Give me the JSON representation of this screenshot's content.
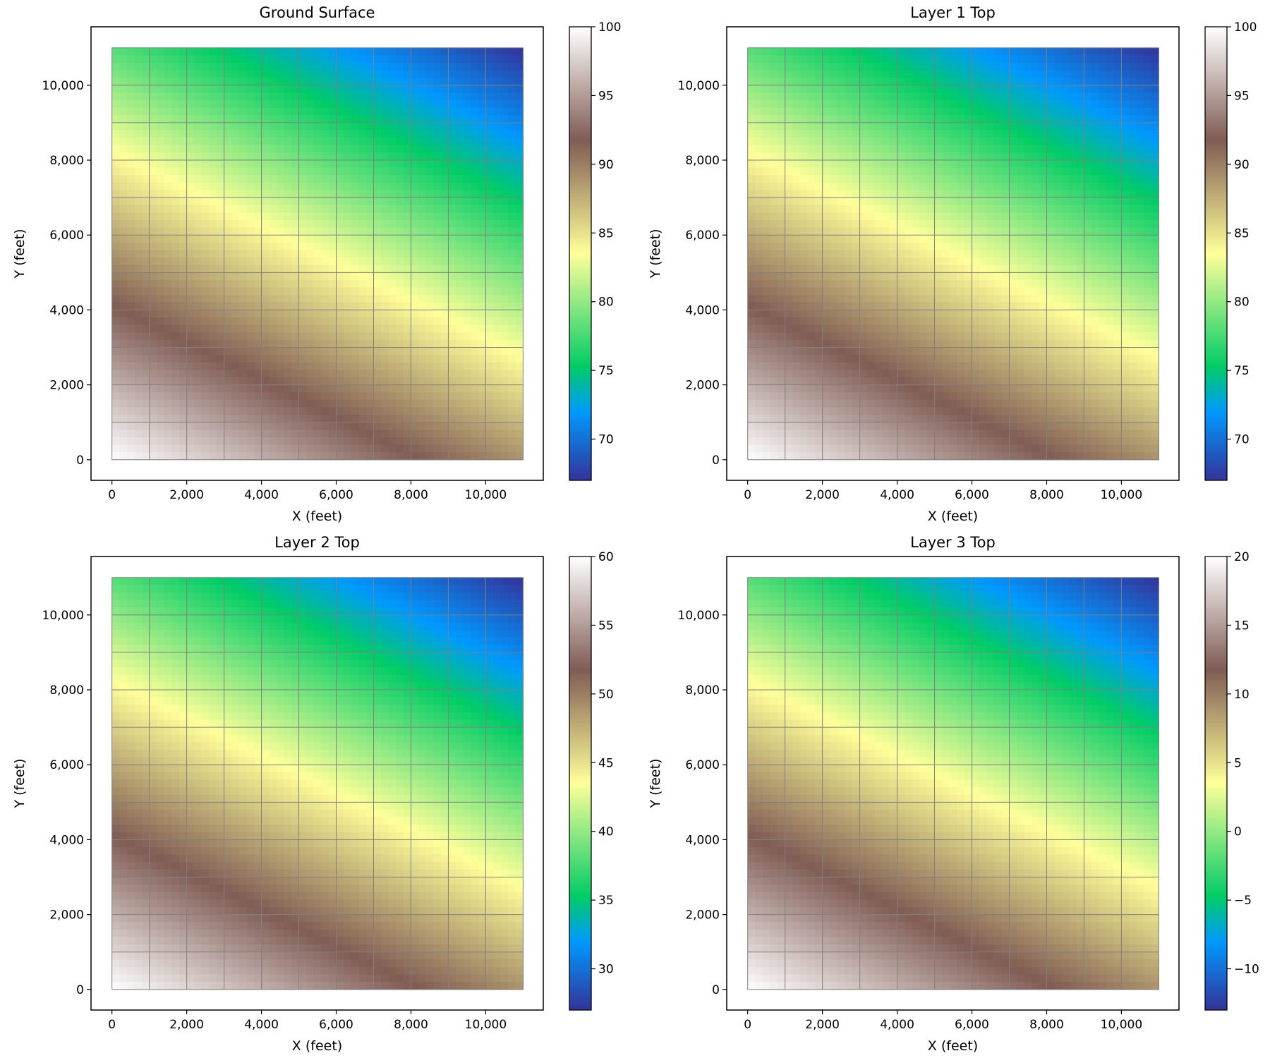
{
  "chart_data": [
    {
      "type": "heatmap",
      "title": "Ground Surface",
      "xlabel": "X (feet)",
      "ylabel": "Y (feet)",
      "colormap": "terrain",
      "x_nodes": [
        0,
        1000,
        2000,
        3000,
        4000,
        5000,
        6000,
        7000,
        8000,
        9000,
        10000,
        11000
      ],
      "y_nodes_top_to_bottom": [
        11000,
        10000,
        9000,
        8000,
        7000,
        6000,
        5000,
        4000,
        3000,
        2000,
        1000,
        0
      ],
      "values": [
        [
          78,
          77,
          76,
          75,
          74,
          73,
          72,
          71,
          70,
          69,
          68,
          67
        ],
        [
          80,
          79,
          78,
          77,
          76,
          75,
          74,
          73,
          72,
          71,
          70,
          69
        ],
        [
          82,
          81,
          80,
          79,
          78,
          77,
          76,
          75,
          74,
          73,
          72,
          71
        ],
        [
          84,
          83,
          82,
          81,
          80,
          79,
          78,
          77,
          76,
          75,
          74,
          73
        ],
        [
          86,
          85,
          84,
          83,
          82,
          81,
          80,
          79,
          78,
          77,
          76,
          75
        ],
        [
          88,
          87,
          86,
          85,
          84,
          83,
          82,
          81,
          80,
          79,
          78,
          77
        ],
        [
          90,
          89,
          88,
          87,
          86,
          85,
          84,
          83,
          82,
          81,
          80,
          79
        ],
        [
          92,
          91,
          90,
          89,
          88,
          87,
          86,
          85,
          84,
          83,
          82,
          81
        ],
        [
          94,
          93,
          92,
          91,
          90,
          89,
          88,
          87,
          86,
          85,
          84,
          83
        ],
        [
          96,
          95,
          94,
          93,
          92,
          91,
          90,
          89,
          88,
          87,
          86,
          85
        ],
        [
          98,
          97,
          96,
          95,
          94,
          93,
          92,
          91,
          90,
          89,
          88,
          87
        ],
        [
          100,
          99,
          98,
          97,
          96,
          95,
          94,
          93,
          92,
          91,
          90,
          89
        ]
      ],
      "xlim": [
        -560,
        11540
      ],
      "ylim": [
        -550,
        11560
      ],
      "xticks": [
        0,
        2000,
        4000,
        6000,
        8000,
        10000
      ],
      "xtick_labels": [
        "0",
        "2,000",
        "4,000",
        "6,000",
        "8,000",
        "10,000"
      ],
      "yticks": [
        0,
        2000,
        4000,
        6000,
        8000,
        10000
      ],
      "ytick_labels": [
        "0",
        "2,000",
        "4,000",
        "6,000",
        "8,000",
        "10,000"
      ],
      "colorbar": {
        "range": [
          67,
          100
        ],
        "ticks": [
          70,
          75,
          80,
          85,
          90,
          95,
          100
        ],
        "tick_labels": [
          "70",
          "75",
          "80",
          "85",
          "90",
          "95",
          "100"
        ]
      }
    },
    {
      "type": "heatmap",
      "title": "Layer 1 Top",
      "xlabel": "X (feet)",
      "ylabel": "Y (feet)",
      "colormap": "terrain",
      "x_nodes": [
        0,
        1000,
        2000,
        3000,
        4000,
        5000,
        6000,
        7000,
        8000,
        9000,
        10000,
        11000
      ],
      "y_nodes_top_to_bottom": [
        11000,
        10000,
        9000,
        8000,
        7000,
        6000,
        5000,
        4000,
        3000,
        2000,
        1000,
        0
      ],
      "values": [
        [
          78,
          77,
          76,
          75,
          74,
          73,
          72,
          71,
          70,
          69,
          68,
          67
        ],
        [
          80,
          79,
          78,
          77,
          76,
          75,
          74,
          73,
          72,
          71,
          70,
          69
        ],
        [
          82,
          81,
          80,
          79,
          78,
          77,
          76,
          75,
          74,
          73,
          72,
          71
        ],
        [
          84,
          83,
          82,
          81,
          80,
          79,
          78,
          77,
          76,
          75,
          74,
          73
        ],
        [
          86,
          85,
          84,
          83,
          82,
          81,
          80,
          79,
          78,
          77,
          76,
          75
        ],
        [
          88,
          87,
          86,
          85,
          84,
          83,
          82,
          81,
          80,
          79,
          78,
          77
        ],
        [
          90,
          89,
          88,
          87,
          86,
          85,
          84,
          83,
          82,
          81,
          80,
          79
        ],
        [
          92,
          91,
          90,
          89,
          88,
          87,
          86,
          85,
          84,
          83,
          82,
          81
        ],
        [
          94,
          93,
          92,
          91,
          90,
          89,
          88,
          87,
          86,
          85,
          84,
          83
        ],
        [
          96,
          95,
          94,
          93,
          92,
          91,
          90,
          89,
          88,
          87,
          86,
          85
        ],
        [
          98,
          97,
          96,
          95,
          94,
          93,
          92,
          91,
          90,
          89,
          88,
          87
        ],
        [
          100,
          99,
          98,
          97,
          96,
          95,
          94,
          93,
          92,
          91,
          90,
          89
        ]
      ],
      "xlim": [
        -560,
        11540
      ],
      "ylim": [
        -550,
        11560
      ],
      "xticks": [
        0,
        2000,
        4000,
        6000,
        8000,
        10000
      ],
      "xtick_labels": [
        "0",
        "2,000",
        "4,000",
        "6,000",
        "8,000",
        "10,000"
      ],
      "yticks": [
        0,
        2000,
        4000,
        6000,
        8000,
        10000
      ],
      "ytick_labels": [
        "0",
        "2,000",
        "4,000",
        "6,000",
        "8,000",
        "10,000"
      ],
      "colorbar": {
        "range": [
          67,
          100
        ],
        "ticks": [
          70,
          75,
          80,
          85,
          90,
          95,
          100
        ],
        "tick_labels": [
          "70",
          "75",
          "80",
          "85",
          "90",
          "95",
          "100"
        ]
      }
    },
    {
      "type": "heatmap",
      "title": "Layer 2 Top",
      "xlabel": "X (feet)",
      "ylabel": "Y (feet)",
      "colormap": "terrain",
      "x_nodes": [
        0,
        1000,
        2000,
        3000,
        4000,
        5000,
        6000,
        7000,
        8000,
        9000,
        10000,
        11000
      ],
      "y_nodes_top_to_bottom": [
        11000,
        10000,
        9000,
        8000,
        7000,
        6000,
        5000,
        4000,
        3000,
        2000,
        1000,
        0
      ],
      "values": [
        [
          38,
          37,
          36,
          35,
          34,
          33,
          32,
          31,
          30,
          29,
          28,
          27
        ],
        [
          40,
          39,
          38,
          37,
          36,
          35,
          34,
          33,
          32,
          31,
          30,
          29
        ],
        [
          42,
          41,
          40,
          39,
          38,
          37,
          36,
          35,
          34,
          33,
          32,
          31
        ],
        [
          44,
          43,
          42,
          41,
          40,
          39,
          38,
          37,
          36,
          35,
          34,
          33
        ],
        [
          46,
          45,
          44,
          43,
          42,
          41,
          40,
          39,
          38,
          37,
          36,
          35
        ],
        [
          48,
          47,
          46,
          45,
          44,
          43,
          42,
          41,
          40,
          39,
          38,
          37
        ],
        [
          50,
          49,
          48,
          47,
          46,
          45,
          44,
          43,
          42,
          41,
          40,
          39
        ],
        [
          52,
          51,
          50,
          49,
          48,
          47,
          46,
          45,
          44,
          43,
          42,
          41
        ],
        [
          54,
          53,
          52,
          51,
          50,
          49,
          48,
          47,
          46,
          45,
          44,
          43
        ],
        [
          56,
          55,
          54,
          53,
          52,
          51,
          50,
          49,
          48,
          47,
          46,
          45
        ],
        [
          58,
          57,
          56,
          55,
          54,
          53,
          52,
          51,
          50,
          49,
          48,
          47
        ],
        [
          60,
          59,
          58,
          57,
          56,
          55,
          54,
          53,
          52,
          51,
          50,
          49
        ]
      ],
      "xlim": [
        -560,
        11540
      ],
      "ylim": [
        -550,
        11560
      ],
      "xticks": [
        0,
        2000,
        4000,
        6000,
        8000,
        10000
      ],
      "xtick_labels": [
        "0",
        "2,000",
        "4,000",
        "6,000",
        "8,000",
        "10,000"
      ],
      "yticks": [
        0,
        2000,
        4000,
        6000,
        8000,
        10000
      ],
      "ytick_labels": [
        "0",
        "2,000",
        "4,000",
        "6,000",
        "8,000",
        "10,000"
      ],
      "colorbar": {
        "range": [
          27,
          60
        ],
        "ticks": [
          30,
          35,
          40,
          45,
          50,
          55,
          60
        ],
        "tick_labels": [
          "30",
          "35",
          "40",
          "45",
          "50",
          "55",
          "60"
        ]
      }
    },
    {
      "type": "heatmap",
      "title": "Layer 3 Top",
      "xlabel": "X (feet)",
      "ylabel": "Y (feet)",
      "colormap": "terrain",
      "x_nodes": [
        0,
        1000,
        2000,
        3000,
        4000,
        5000,
        6000,
        7000,
        8000,
        9000,
        10000,
        11000
      ],
      "y_nodes_top_to_bottom": [
        11000,
        10000,
        9000,
        8000,
        7000,
        6000,
        5000,
        4000,
        3000,
        2000,
        1000,
        0
      ],
      "values": [
        [
          -2,
          -3,
          -4,
          -5,
          -6,
          -7,
          -8,
          -9,
          -10,
          -11,
          -12,
          -13
        ],
        [
          0,
          -1,
          -2,
          -3,
          -4,
          -5,
          -6,
          -7,
          -8,
          -9,
          -10,
          -11
        ],
        [
          2,
          1,
          0,
          -1,
          -2,
          -3,
          -4,
          -5,
          -6,
          -7,
          -8,
          -9
        ],
        [
          4,
          3,
          2,
          1,
          0,
          -1,
          -2,
          -3,
          -4,
          -5,
          -6,
          -7
        ],
        [
          6,
          5,
          4,
          3,
          2,
          1,
          0,
          -1,
          -2,
          -3,
          -4,
          -5
        ],
        [
          8,
          7,
          6,
          5,
          4,
          3,
          2,
          1,
          0,
          -1,
          -2,
          -3
        ],
        [
          10,
          9,
          8,
          7,
          6,
          5,
          4,
          3,
          2,
          1,
          0,
          -1
        ],
        [
          12,
          11,
          10,
          9,
          8,
          7,
          6,
          5,
          4,
          3,
          2,
          1
        ],
        [
          14,
          13,
          12,
          11,
          10,
          9,
          8,
          7,
          6,
          5,
          4,
          3
        ],
        [
          16,
          15,
          14,
          13,
          12,
          11,
          10,
          9,
          8,
          7,
          6,
          5
        ],
        [
          18,
          17,
          16,
          15,
          14,
          13,
          12,
          11,
          10,
          9,
          8,
          7
        ],
        [
          20,
          19,
          18,
          17,
          16,
          15,
          14,
          13,
          12,
          11,
          10,
          9
        ]
      ],
      "xlim": [
        -560,
        11540
      ],
      "ylim": [
        -550,
        11560
      ],
      "xticks": [
        0,
        2000,
        4000,
        6000,
        8000,
        10000
      ],
      "xtick_labels": [
        "0",
        "2,000",
        "4,000",
        "6,000",
        "8,000",
        "10,000"
      ],
      "yticks": [
        0,
        2000,
        4000,
        6000,
        8000,
        10000
      ],
      "ytick_labels": [
        "0",
        "2,000",
        "4,000",
        "6,000",
        "8,000",
        "10,000"
      ],
      "colorbar": {
        "range": [
          -13,
          20
        ],
        "ticks": [
          -10,
          -5,
          0,
          5,
          10,
          15,
          20
        ],
        "tick_labels": [
          "−10",
          "−5",
          "0",
          "5",
          "10",
          "15",
          "20"
        ]
      }
    }
  ],
  "colors": {
    "gridline": "#808080",
    "frame": "#000000"
  }
}
